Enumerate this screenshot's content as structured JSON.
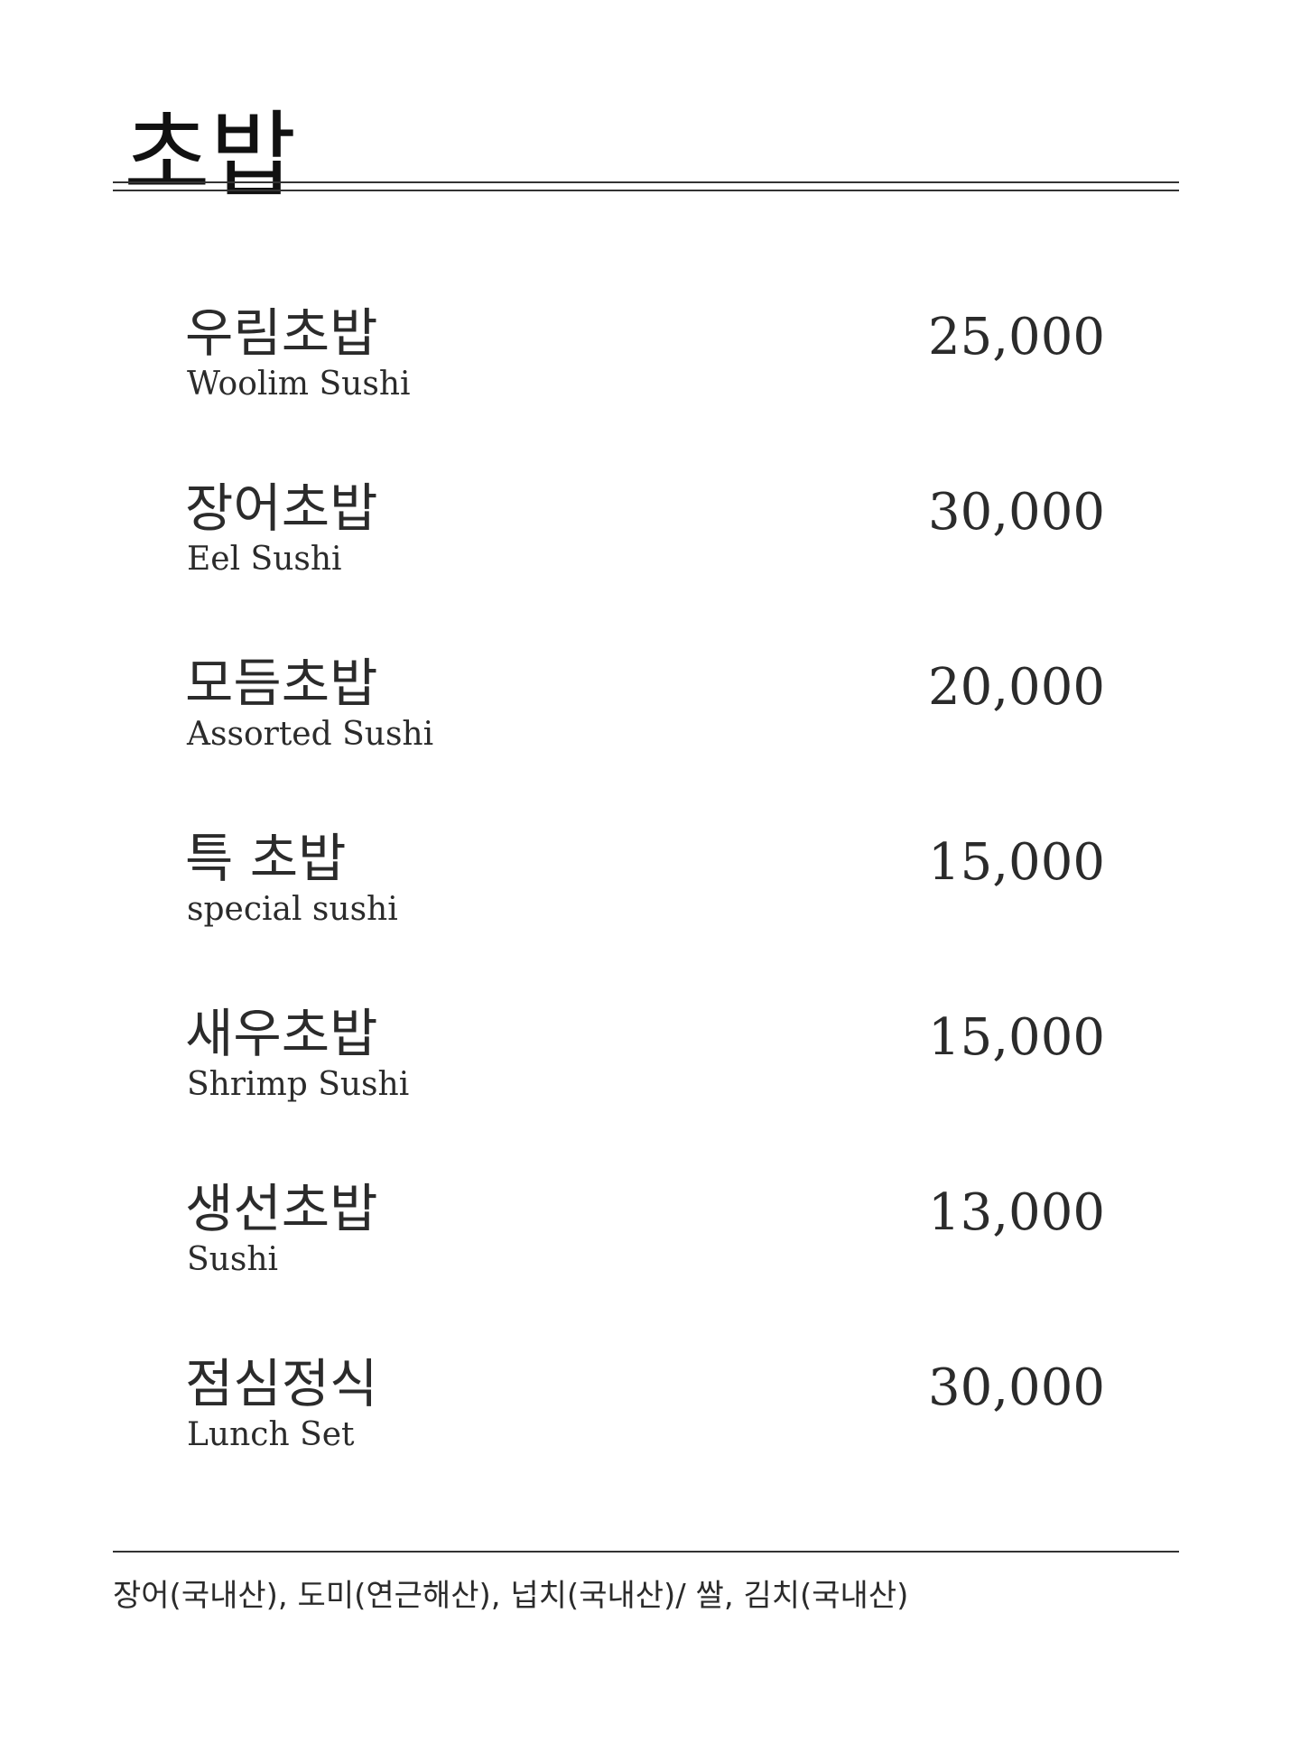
{
  "header": {
    "title": "초밥"
  },
  "menu": {
    "items": [
      {
        "name_ko": "우림초밥",
        "name_en": "Woolim Sushi",
        "price": "25,000"
      },
      {
        "name_ko": "장어초밥",
        "name_en": "Eel Sushi",
        "price": "30,000"
      },
      {
        "name_ko": "모듬초밥",
        "name_en": "Assorted Sushi",
        "price": "20,000"
      },
      {
        "name_ko": "특 초밥",
        "name_en": "special sushi",
        "price": "15,000"
      },
      {
        "name_ko": "새우초밥",
        "name_en": "Shrimp Sushi",
        "price": "15,000"
      },
      {
        "name_ko": "생선초밥",
        "name_en": "Sushi",
        "price": "13,000"
      },
      {
        "name_ko": "점심정식",
        "name_en": "Lunch Set",
        "price": "30,000"
      }
    ]
  },
  "footer": {
    "origin_note": "장어(국내산), 도미(연근해산), 넙치(국내산)/ 쌀, 김치(국내산)"
  }
}
